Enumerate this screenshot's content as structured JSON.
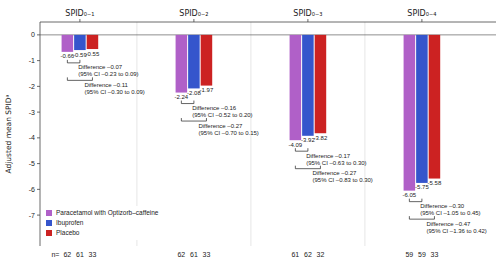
{
  "chart_data": {
    "type": "bar",
    "categories": [
      "SPID₀₋₁",
      "SPID₀₋₂",
      "SPID₀₋₃",
      "SPID₀₋₄"
    ],
    "ylabel": "Adjusted mean SPIDᵃ",
    "series": [
      {
        "name": "Paracetamol with Optizorb–caffeine",
        "color": "#b060c8",
        "values": [
          -0.66,
          -2.24,
          -4.09,
          -6.05
        ],
        "n": [
          62,
          62,
          61,
          59
        ]
      },
      {
        "name": "Ibuprofen",
        "color": "#3555cc",
        "values": [
          -0.59,
          -2.08,
          -3.92,
          -5.75
        ],
        "n": [
          61,
          61,
          62,
          59
        ]
      },
      {
        "name": "Placebo",
        "color": "#cc2222",
        "values": [
          -0.55,
          -1.97,
          -3.82,
          -5.58
        ],
        "n": [
          33,
          33,
          32,
          33
        ]
      }
    ],
    "annotations": [
      [
        "Difference –0.07\n(95% CI –0.23 to 0.09)",
        "Difference –0.11\n(95% CI –0.30 to 0.09)"
      ],
      [
        "Difference –0.16\n(95% CI –0.52 to 0.20)",
        "Difference –0.27\n(95% CI –0.70 to 0.15)"
      ],
      [
        "Difference –0.17\n(95% CI –0.63 to 0.30)",
        "Difference –0.27\n(95% CI –0.83 to 0.30)"
      ],
      [
        "Difference –0.30\n(95% CI –1.05 to 0.45)",
        "Difference –0.47\n(95% CI –1.36 to 0.42)"
      ]
    ],
    "n_label": "n=",
    "ylim": [
      -8.2,
      0.5
    ],
    "yticks": [
      0,
      -1,
      -2,
      -3,
      -4,
      -5,
      -6,
      -7
    ],
    "data_labels": true,
    "legend": "lower left",
    "grid": false
  }
}
